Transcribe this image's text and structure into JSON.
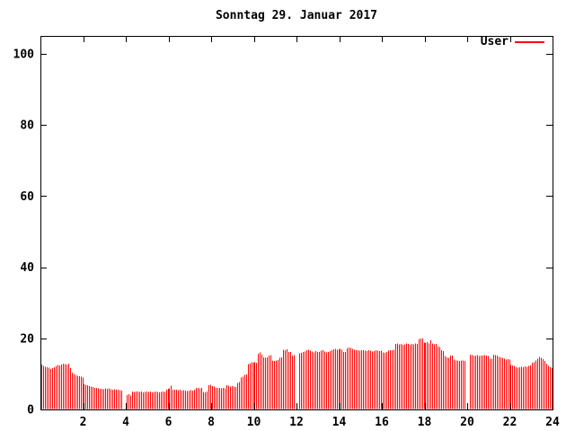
{
  "title": "Sonntag 29. Januar 2017",
  "legend": {
    "label": "User",
    "position": "top-right"
  },
  "colors": {
    "series": "#ff0000",
    "text": "#000000",
    "border": "#000000",
    "background": "#ffffff"
  },
  "chart_data": {
    "type": "bar",
    "style": "impulses",
    "title": "Sonntag 29. Januar 2017",
    "series_name": "User",
    "xlabel": "",
    "ylabel": "",
    "x_unit": "hour-of-day",
    "sample_interval_minutes": 5,
    "xlim": [
      0,
      24
    ],
    "ylim": [
      0,
      105
    ],
    "x_ticks": [
      2,
      4,
      6,
      8,
      10,
      12,
      14,
      16,
      18,
      20,
      22,
      24
    ],
    "y_ticks": [
      0,
      20,
      40,
      60,
      80,
      100
    ],
    "grid": false,
    "legend_position": "top-right",
    "gaps_at_hours": [
      3.9,
      12.0,
      20.0
    ],
    "values": [
      12.6,
      12.3,
      12.0,
      11.9,
      11.7,
      11.4,
      11.6,
      11.9,
      12.2,
      12.5,
      12.4,
      12.6,
      12.9,
      12.8,
      12.6,
      12.9,
      11.6,
      10.4,
      10.0,
      9.6,
      9.5,
      9.3,
      9.2,
      9.0,
      7.1,
      7.0,
      6.8,
      6.6,
      6.4,
      6.3,
      6.1,
      6.0,
      5.9,
      5.8,
      5.8,
      5.7,
      5.9,
      5.8,
      5.9,
      5.7,
      5.6,
      5.7,
      5.5,
      5.6,
      5.4,
      5.3,
      null,
      null,
      4.1,
      4.3,
      3.9,
      5.0,
      4.9,
      5.1,
      5.0,
      4.9,
      5.0,
      4.8,
      4.9,
      5.0,
      4.9,
      5.0,
      4.8,
      4.9,
      5.1,
      4.9,
      4.8,
      4.9,
      5.0,
      4.9,
      5.6,
      5.8,
      5.9,
      6.7,
      5.6,
      5.5,
      5.6,
      5.4,
      5.5,
      5.3,
      5.4,
      5.3,
      5.2,
      5.3,
      5.4,
      5.3,
      5.5,
      6.0,
      6.1,
      5.9,
      6.0,
      4.9,
      4.8,
      5.0,
      6.8,
      6.9,
      6.6,
      6.4,
      6.1,
      6.0,
      6.0,
      5.9,
      6.0,
      5.9,
      6.8,
      6.7,
      6.4,
      6.5,
      6.4,
      6.3,
      7.5,
      7.7,
      9.0,
      9.2,
      9.7,
      9.9,
      12.8,
      13.0,
      13.2,
      13.3,
      13.3,
      13.1,
      15.6,
      16.0,
      15.4,
      14.6,
      14.5,
      14.7,
      15.1,
      15.3,
      13.8,
      13.6,
      13.7,
      13.9,
      14.5,
      14.7,
      16.8,
      16.7,
      16.9,
      16.2,
      16.1,
      15.2,
      15.3,
      null,
      null,
      15.8,
      15.9,
      16.1,
      16.3,
      16.6,
      16.8,
      16.5,
      16.3,
      16.0,
      16.4,
      16.2,
      16.1,
      16.5,
      16.7,
      16.3,
      16.0,
      16.2,
      16.4,
      16.6,
      16.9,
      17.0,
      16.8,
      16.9,
      17.0,
      16.8,
      16.2,
      16.1,
      17.2,
      17.4,
      17.3,
      17.1,
      16.8,
      16.6,
      16.7,
      16.5,
      16.6,
      16.7,
      16.5,
      16.4,
      16.6,
      16.5,
      16.3,
      16.4,
      16.6,
      16.5,
      16.4,
      16.5,
      16.0,
      15.9,
      16.1,
      16.5,
      16.7,
      16.6,
      16.8,
      18.4,
      18.5,
      18.3,
      18.4,
      18.2,
      18.3,
      18.5,
      18.4,
      18.2,
      18.4,
      18.3,
      18.5,
      18.4,
      19.8,
      20.0,
      19.9,
      18.8,
      18.7,
      18.9,
      18.6,
      19.4,
      18.5,
      18.3,
      18.4,
      17.8,
      17.6,
      16.6,
      16.4,
      15.0,
      14.6,
      14.5,
      15.1,
      15.2,
      14.0,
      13.8,
      13.7,
      13.6,
      13.8,
      13.7,
      13.6,
      null,
      null,
      15.4,
      15.3,
      15.1,
      15.2,
      15.3,
      15.0,
      15.2,
      15.1,
      15.3,
      15.2,
      15.0,
      14.3,
      14.2,
      15.4,
      15.3,
      15.2,
      14.8,
      14.6,
      14.5,
      14.2,
      14.0,
      14.1,
      14.0,
      12.5,
      12.4,
      12.3,
      11.8,
      11.7,
      11.9,
      12.0,
      11.9,
      12.1,
      12.0,
      12.2,
      12.4,
      13.1,
      13.3,
      13.7,
      14.2,
      14.8,
      14.5,
      14.1,
      13.6,
      12.9,
      12.3,
      11.8,
      11.6
    ]
  }
}
